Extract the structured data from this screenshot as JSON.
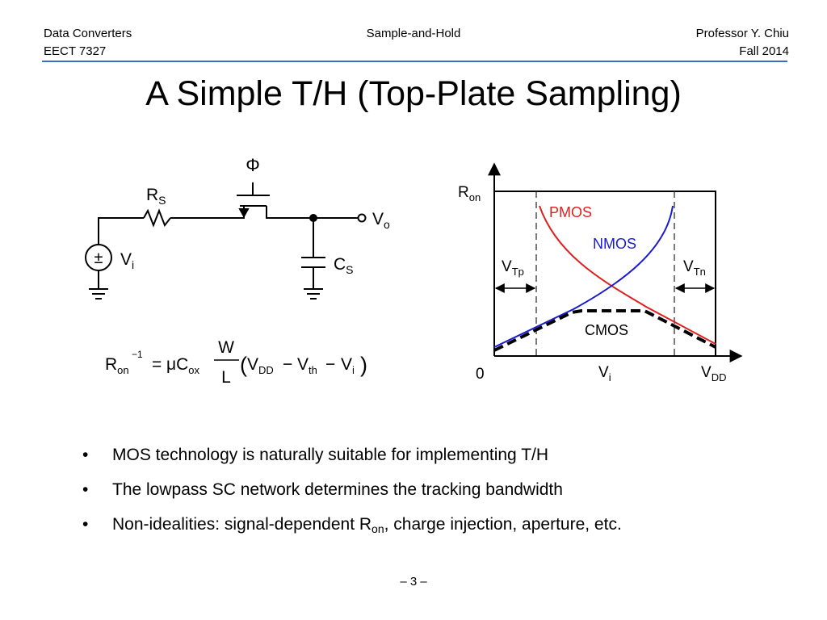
{
  "header": {
    "course_title": "Data Converters",
    "course_code": "EECT 7327",
    "topic": "Sample-and-Hold",
    "instructor": "Professor Y. Chiu",
    "term": "Fall 2014",
    "rule_color": "#3b6dc8"
  },
  "title": "A Simple T/H (Top-Plate Sampling)",
  "circuit": {
    "phi": "Φ",
    "rs_main": "R",
    "rs_sub": "S",
    "vo_main": "V",
    "vo_sub": "o",
    "vi_main": "V",
    "vi_sub": "i",
    "cs_main": "C",
    "cs_sub": "S",
    "source_symbol": "±"
  },
  "equation": {
    "lhs_main": "R",
    "lhs_sub": "on",
    "lhs_sup": "−1",
    "equals": "=",
    "mu": "μC",
    "cox_sub": "ox",
    "frac_num": "W",
    "frac_den": "L",
    "lparen": "(",
    "rparen": ")",
    "vdd_main": "V",
    "vdd_sub": "DD",
    "minus": "−",
    "vth_main": "V",
    "vth_sub": "th",
    "vi_main": "V",
    "vi_sub": "i"
  },
  "ron_plot": {
    "yaxis_main": "R",
    "yaxis_sub": "on",
    "origin_label": "0",
    "vi_main": "V",
    "vi_sub": "i",
    "vdd_main": "V",
    "vdd_sub": "DD",
    "pmos_label": "PMOS",
    "nmos_label": "NMOS",
    "cmos_label": "CMOS",
    "vtp_main": "V",
    "vtp_sub": "Tp",
    "vtn_main": "V",
    "vtn_sub": "Tn",
    "colors": {
      "pmos": "#e02020",
      "nmos": "#1a1ad0",
      "cmos": "#000000"
    }
  },
  "bullets": [
    {
      "text": "MOS technology is naturally suitable for implementing T/H"
    },
    {
      "text": "The lowpass SC network determines the tracking bandwidth"
    },
    {
      "pre": "Non-idealities: signal-dependent R",
      "sub": "on",
      "post": ", charge injection, aperture, etc."
    }
  ],
  "bullet_symbol": "•",
  "page_number": "– 3 –"
}
